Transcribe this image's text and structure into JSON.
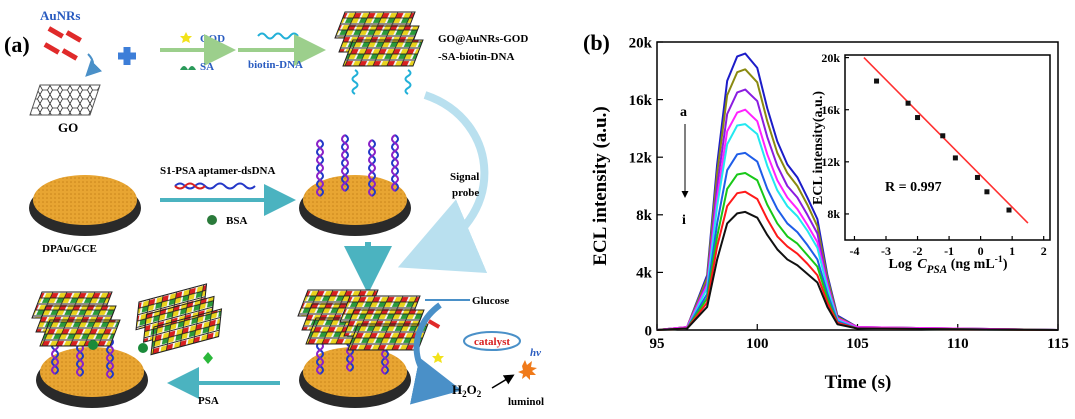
{
  "schematic": {
    "panel_label": "(a)",
    "aunrs": "AuNRs",
    "go": "GO",
    "god": "GOD",
    "sa": "SA",
    "biotin_dna": "biotin-DNA",
    "probe_name": [
      "GO@AuNRs-GOD",
      "-SA-biotin-DNA"
    ],
    "signal_probe": [
      "Signal",
      "probe"
    ],
    "aptamer": "S1-PSA aptamer-dsDNA",
    "bsa": "BSA",
    "electrode": "DPAu/GCE",
    "glucose": "Glucose",
    "catalyst": "catalyst",
    "h2o2": [
      "H",
      "2",
      "O",
      "2"
    ],
    "hv": "hv",
    "luminol": "luminol",
    "psa": "PSA"
  },
  "chart_data": [
    {
      "type": "line",
      "panel_label": "(b)",
      "xlabel": "Time (s)",
      "ylabel": "ECL intensity (a.u.)",
      "annotations": [
        "a",
        "i"
      ],
      "x": [
        95,
        96.5,
        97.5,
        98,
        98.5,
        99,
        99.4,
        100,
        100.5,
        101,
        101.5,
        102,
        102.5,
        103,
        103.5,
        104,
        105,
        115
      ],
      "xlim": [
        95,
        115
      ],
      "xticks": [
        95,
        100,
        105,
        110,
        115
      ],
      "ylim": [
        0,
        20000
      ],
      "yticks": [
        0,
        {
          "value": 4000,
          "label": "4k"
        },
        {
          "value": 8000,
          "label": "8k"
        },
        {
          "value": 12000,
          "label": "12k"
        },
        {
          "value": 16000,
          "label": "16k"
        },
        {
          "value": 20000,
          "label": "20k"
        }
      ],
      "series": [
        {
          "color": "#1c1cc8",
          "values": [
            0,
            200,
            3800,
            11500,
            17300,
            19000,
            19200,
            18200,
            15400,
            13100,
            11500,
            10600,
            9200,
            7700,
            3800,
            1000,
            200,
            0
          ]
        },
        {
          "color": "#8a8a10",
          "values": [
            0,
            200,
            3600,
            10900,
            16300,
            17900,
            18100,
            17200,
            14500,
            12300,
            10900,
            10000,
            8700,
            7200,
            3600,
            900,
            200,
            0
          ]
        },
        {
          "color": "#8b1ce0",
          "values": [
            0,
            200,
            3300,
            10000,
            15000,
            16500,
            16700,
            15900,
            13400,
            11400,
            10000,
            9200,
            8000,
            6700,
            3300,
            800,
            200,
            0
          ]
        },
        {
          "color": "#ff22ff",
          "values": [
            0,
            200,
            3100,
            9200,
            13800,
            15100,
            15300,
            14500,
            12200,
            10400,
            9200,
            8400,
            7300,
            6100,
            3100,
            800,
            200,
            0
          ]
        },
        {
          "color": "#22e8f0",
          "values": [
            0,
            100,
            2900,
            8600,
            12900,
            14200,
            14300,
            13600,
            11400,
            9700,
            8600,
            7900,
            6900,
            5700,
            2900,
            700,
            100,
            0
          ]
        },
        {
          "color": "#1f5de8",
          "values": [
            0,
            100,
            2500,
            7400,
            11100,
            12200,
            12300,
            11700,
            9800,
            8400,
            7400,
            6800,
            5900,
            4900,
            2500,
            600,
            100,
            0
          ]
        },
        {
          "color": "#18c818",
          "values": [
            0,
            100,
            2200,
            6500,
            9800,
            10800,
            10900,
            10400,
            8700,
            7400,
            6500,
            6000,
            5200,
            4400,
            2200,
            500,
            100,
            0
          ]
        },
        {
          "color": "#ff1a1a",
          "values": [
            0,
            100,
            1900,
            5800,
            8600,
            9500,
            9600,
            9100,
            7700,
            6500,
            5800,
            5300,
            4600,
            3800,
            1900,
            500,
            100,
            0
          ]
        },
        {
          "color": "#111111",
          "values": [
            0,
            100,
            1600,
            4900,
            7400,
            8100,
            8200,
            7800,
            6600,
            5600,
            4900,
            4500,
            3900,
            3300,
            1600,
            400,
            100,
            0
          ]
        }
      ]
    },
    {
      "type": "scatter",
      "ylabel": "ECL intensity(a.u.)",
      "xlabel_parts": [
        "Log ",
        "C",
        "PSA",
        " (ng mL",
        "-1",
        ")"
      ],
      "annotation": "R = 0.997",
      "x": [
        -3.3,
        -2.3,
        -2,
        -1.2,
        -0.8,
        -0.1,
        0.2,
        0.9
      ],
      "xlim": [
        -4.3,
        2.2
      ],
      "xticks": [
        -4,
        -3,
        -2,
        -1,
        0,
        1,
        2
      ],
      "ylim": [
        6000,
        20200
      ],
      "yticks": [
        {
          "value": 8000,
          "label": "8k"
        },
        {
          "value": 12000,
          "label": "12k"
        },
        {
          "value": 16000,
          "label": "16k"
        },
        {
          "value": 20000,
          "label": "20k"
        }
      ],
      "series": [
        {
          "color": "#111111",
          "values": [
            18200,
            16500,
            15400,
            14000,
            12300,
            10800,
            9700,
            8300
          ]
        }
      ],
      "fit": {
        "color": "#ff3030",
        "x": [
          -3.7,
          1.5
        ],
        "values": [
          20000,
          7300
        ]
      }
    }
  ]
}
